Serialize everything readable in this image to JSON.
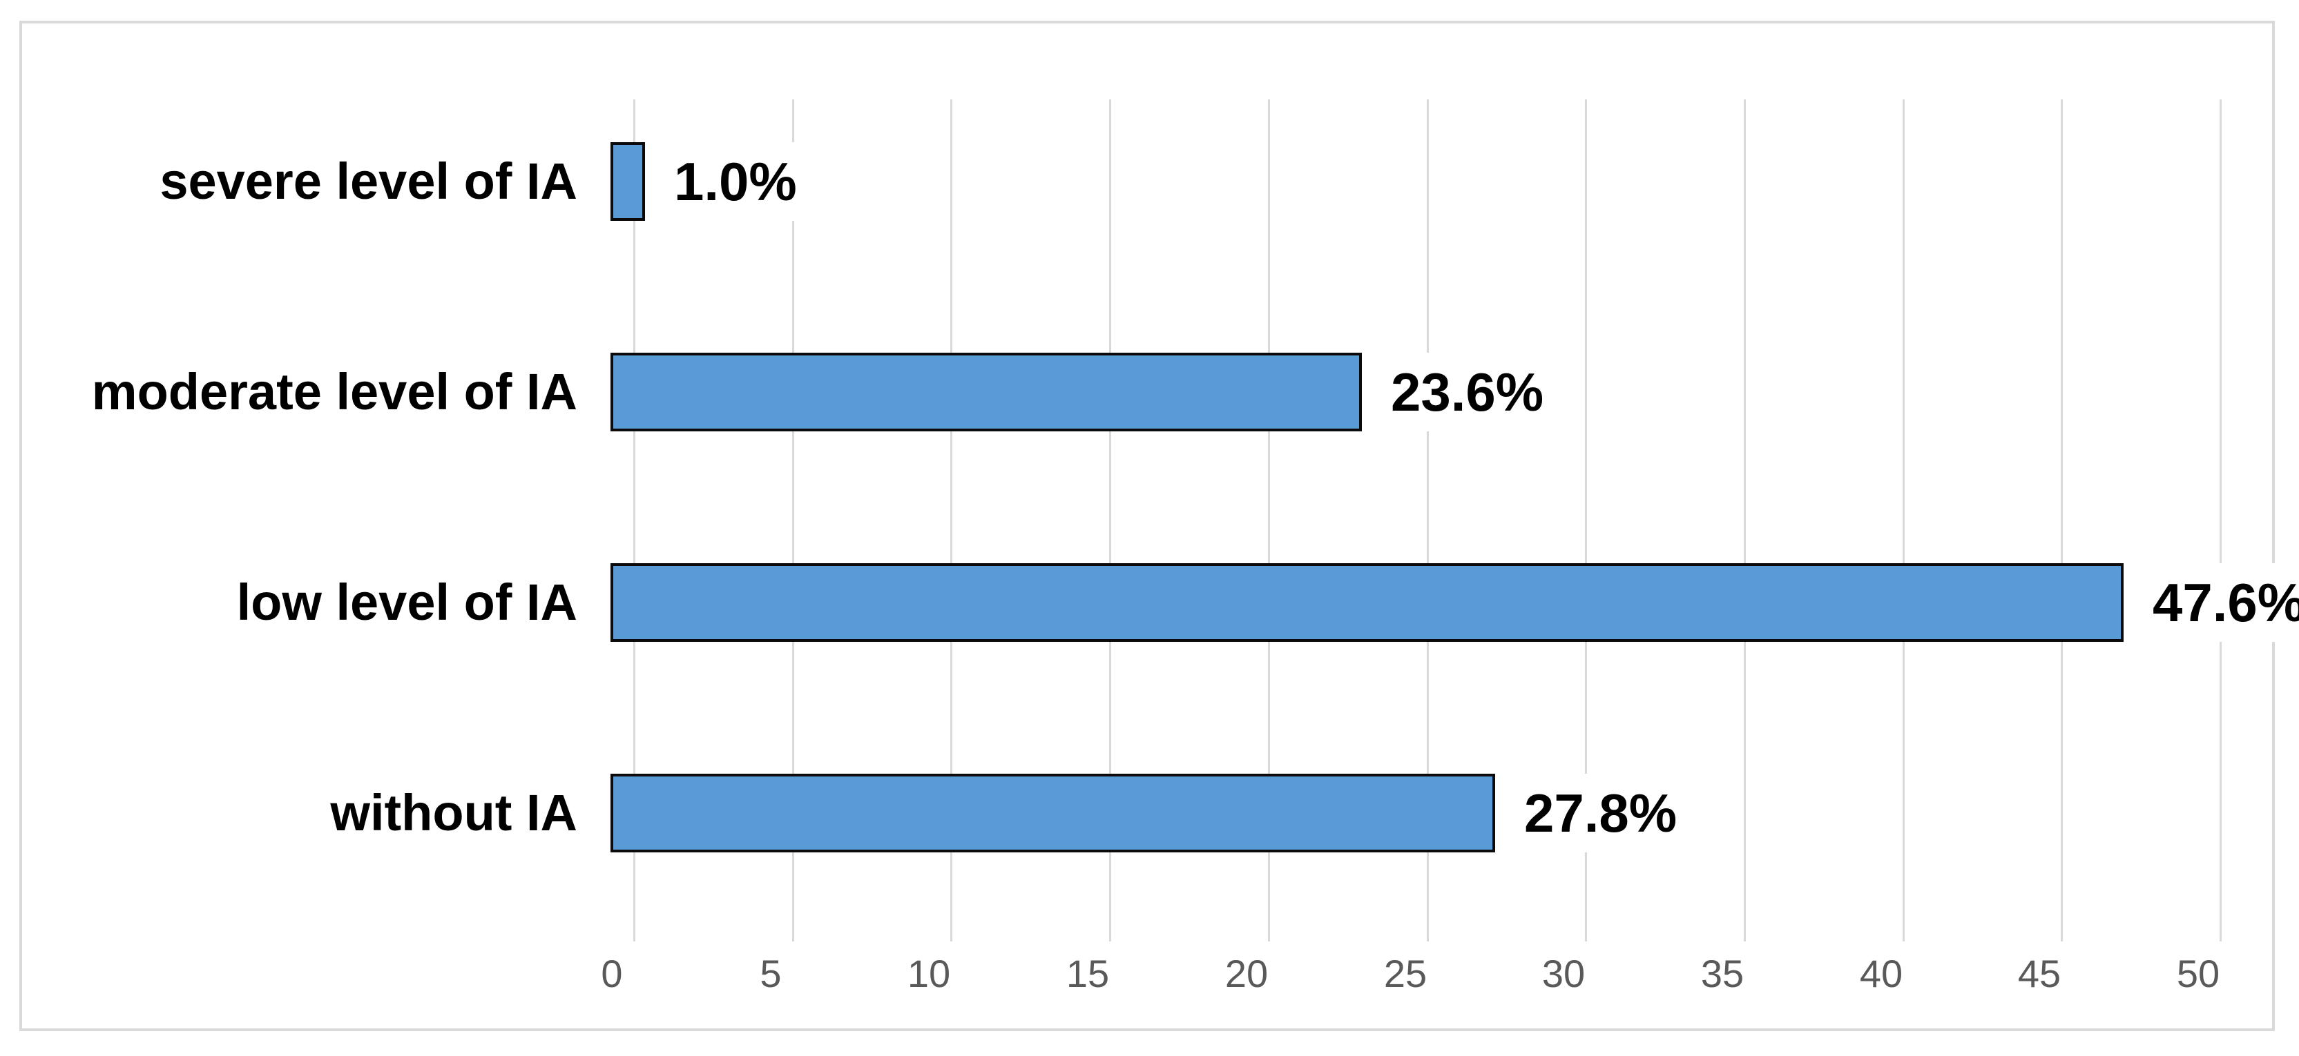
{
  "chart_data": {
    "type": "bar",
    "orientation": "horizontal",
    "title": "",
    "xlabel": "",
    "ylabel": "",
    "categories": [
      "severe level of IA",
      "moderate level of IA",
      "low level of IA",
      "without IA"
    ],
    "values": [
      1.0,
      23.6,
      47.6,
      27.8
    ],
    "data_labels": [
      "1.0%",
      "23.6%",
      "47.6%",
      "27.8%"
    ],
    "xlim": [
      0,
      50
    ],
    "xticks": [
      0,
      5,
      10,
      15,
      20,
      25,
      30,
      35,
      40,
      45,
      50
    ],
    "grid": "vertical-major",
    "legend": "none",
    "colors": {
      "bar_fill": "#5b9bd5",
      "bar_border": "#0b0b0b",
      "gridline": "#d9d9d9",
      "frame_border": "#d9d9d9",
      "tick_label": "#595959",
      "label_text": "#000000",
      "background": "#ffffff"
    }
  }
}
